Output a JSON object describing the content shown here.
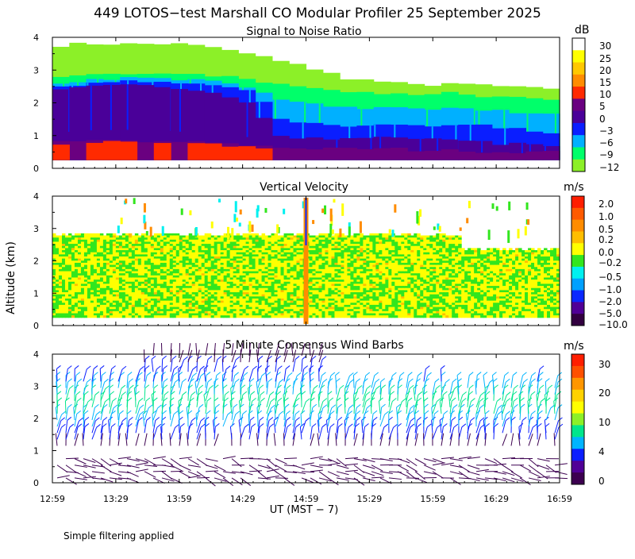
{
  "page": {
    "title": "449 LOTOS−test Marshall CO Modular Profiler 25 September 2025",
    "shared_ylabel": "Altitude (km)",
    "xlabel": "UT  (MST − 7)",
    "footnote": "Simple filtering applied"
  },
  "chart_data": [
    {
      "type": "heatmap",
      "title": "Signal to Noise Ratio",
      "x_ticks": [
        "12:59",
        "13:29",
        "13:59",
        "14:29",
        "14:59",
        "15:29",
        "15:59",
        "16:29",
        "16:59"
      ],
      "y_ticks": [
        "0",
        "1",
        "2",
        "3",
        "4"
      ],
      "ylim": [
        0,
        4
      ],
      "ylabel": "Altitude (km)",
      "colorbar": {
        "unit": "dB",
        "labels": [
          "30",
          "25",
          "20",
          "15",
          "10",
          "5",
          "0",
          "−3",
          "−6",
          "−9",
          "−12"
        ],
        "colors": [
          "#ffffff",
          "#ffff00",
          "#ffc800",
          "#ff8c00",
          "#ff2a00",
          "#6a0080",
          "#4a0099",
          "#0a1eff",
          "#00b0ff",
          "#00ff6a",
          "#8cf028"
        ]
      },
      "layers": [
        {
          "color": "#8cf028",
          "top_km": [
            3.75,
            3.8,
            3.8,
            3.8,
            3.8,
            3.8,
            3.8,
            3.8,
            3.75,
            3.7,
            3.6,
            3.5,
            3.4,
            3.3,
            3.2,
            3.0,
            2.9,
            2.75,
            2.7,
            2.65,
            2.6,
            2.55,
            2.55,
            2.6,
            2.55,
            2.55,
            2.5,
            2.5,
            2.45,
            2.4
          ]
        },
        {
          "color": "#00ff6a",
          "top_km": [
            2.8,
            2.85,
            2.85,
            2.9,
            2.9,
            2.9,
            2.9,
            2.9,
            2.85,
            2.8,
            2.8,
            2.7,
            2.65,
            2.6,
            2.5,
            2.45,
            2.4,
            2.35,
            2.3,
            2.3,
            2.3,
            2.25,
            2.25,
            2.3,
            2.25,
            2.2,
            2.2,
            2.2,
            2.15,
            2.1
          ]
        },
        {
          "color": "#00b0ff",
          "top_km": [
            2.6,
            2.65,
            2.7,
            2.7,
            2.75,
            2.75,
            2.75,
            2.7,
            2.7,
            2.65,
            2.6,
            2.5,
            2.3,
            2.1,
            2.0,
            1.95,
            1.9,
            1.9,
            1.85,
            1.85,
            1.85,
            1.8,
            1.8,
            1.85,
            1.8,
            1.8,
            1.75,
            1.7,
            1.7,
            1.65
          ]
        },
        {
          "color": "#0a1eff",
          "top_km": [
            2.5,
            2.55,
            2.6,
            2.6,
            2.65,
            2.65,
            2.65,
            2.6,
            2.6,
            2.55,
            2.5,
            2.35,
            2.0,
            1.5,
            1.4,
            1.35,
            1.35,
            1.3,
            1.3,
            1.35,
            1.35,
            1.3,
            1.3,
            1.35,
            1.3,
            1.3,
            1.2,
            1.2,
            1.15,
            1.1
          ]
        },
        {
          "color": "#4a0099",
          "top_km": [
            2.45,
            2.5,
            2.55,
            2.55,
            2.55,
            2.55,
            2.5,
            2.45,
            2.4,
            2.3,
            2.2,
            2.0,
            1.5,
            1.0,
            0.95,
            0.95,
            0.9,
            0.9,
            0.9,
            0.95,
            0.95,
            0.9,
            0.9,
            0.85,
            0.85,
            0.8,
            0.75,
            0.75,
            0.7,
            0.7
          ]
        },
        {
          "color": "#6a0080",
          "top_km": [
            0.8,
            0.8,
            0.85,
            0.85,
            0.85,
            0.8,
            0.8,
            0.8,
            0.8,
            0.8,
            0.75,
            0.7,
            0.7,
            0.65,
            0.6,
            0.6,
            0.6,
            0.6,
            0.6,
            0.6,
            0.6,
            0.55,
            0.55,
            0.55,
            0.55,
            0.5,
            0.5,
            0.5,
            0.5,
            0.5
          ]
        },
        {
          "color": "#ff2a00",
          "top_km": [
            0.75,
            0.0,
            0.8,
            0.8,
            0.8,
            0.0,
            0.8,
            0.0,
            0.8,
            0.75,
            0.7,
            0.65,
            0.6,
            0.0,
            0.0,
            0.0,
            0.0,
            0.0,
            0.0,
            0.0,
            0.0,
            0.0,
            0.0,
            0.0,
            0.0,
            0.0,
            0.0,
            0.0,
            0.0,
            0.0
          ]
        }
      ]
    },
    {
      "type": "heatmap",
      "title": "Vertical Velocity",
      "x_ticks": [
        "12:59",
        "13:29",
        "13:59",
        "14:29",
        "14:59",
        "15:29",
        "15:59",
        "16:29",
        "16:59"
      ],
      "y_ticks": [
        "0",
        "1",
        "2",
        "3",
        "4"
      ],
      "ylim": [
        0,
        4
      ],
      "colorbar": {
        "unit": "m/s",
        "labels": [
          "2.0",
          "1.0",
          "0.5",
          "0.2",
          "0.0",
          "−0.2",
          "−0.5",
          "−1.0",
          "−2.0",
          "−5.0",
          "−10.0"
        ],
        "colors": [
          "#ff1e00",
          "#ff5a00",
          "#ff8c00",
          "#ffbe00",
          "#ffff00",
          "#32e61e",
          "#00f0f0",
          "#00a0ff",
          "#0a28ff",
          "#500096",
          "#320040"
        ]
      },
      "data_top_km": 2.85,
      "mix": {
        "yellow_fraction": 0.55,
        "green_fraction": 0.42,
        "orange_fraction": 0.03
      }
    },
    {
      "type": "scatter",
      "title": "5 Minute Consensus Wind Barbs",
      "x_ticks": [
        "12:59",
        "13:29",
        "13:59",
        "14:29",
        "14:59",
        "15:29",
        "15:59",
        "16:29",
        "16:59"
      ],
      "y_ticks": [
        "0",
        "1",
        "2",
        "3",
        "4"
      ],
      "ylim": [
        0,
        4
      ],
      "colorbar": {
        "unit": "m/s",
        "labels": [
          "30",
          "20",
          "10",
          "4",
          "0"
        ],
        "colors": [
          "#ff1e00",
          "#ff5000",
          "#ff9600",
          "#ffd200",
          "#ffff00",
          "#8cf028",
          "#00e68c",
          "#00b4ff",
          "#0a1eff",
          "#500096",
          "#3c0050"
        ]
      },
      "barb_levels": [
        {
          "alt_km": 0.15,
          "speed": 2
        },
        {
          "alt_km": 0.35,
          "speed": 2
        },
        {
          "alt_km": 0.55,
          "speed": 2
        },
        {
          "alt_km": 0.75,
          "speed": 3
        },
        {
          "alt_km": 1.15,
          "speed": 3
        },
        {
          "alt_km": 1.35,
          "speed": 4
        },
        {
          "alt_km": 1.55,
          "speed": 5
        },
        {
          "alt_km": 1.75,
          "speed": 6
        },
        {
          "alt_km": 1.95,
          "speed": 7
        },
        {
          "alt_km": 2.15,
          "speed": 8
        },
        {
          "alt_km": 2.35,
          "speed": 8
        },
        {
          "alt_km": 2.55,
          "speed": 8
        },
        {
          "alt_km": 2.75,
          "speed": 7
        },
        {
          "alt_km": 2.95,
          "speed": 6
        },
        {
          "alt_km": 3.15,
          "speed": 5
        },
        {
          "alt_km": 3.45,
          "speed": 4
        },
        {
          "alt_km": 3.75,
          "speed": 3
        },
        {
          "alt_km": 3.95,
          "speed": 3
        }
      ]
    }
  ]
}
